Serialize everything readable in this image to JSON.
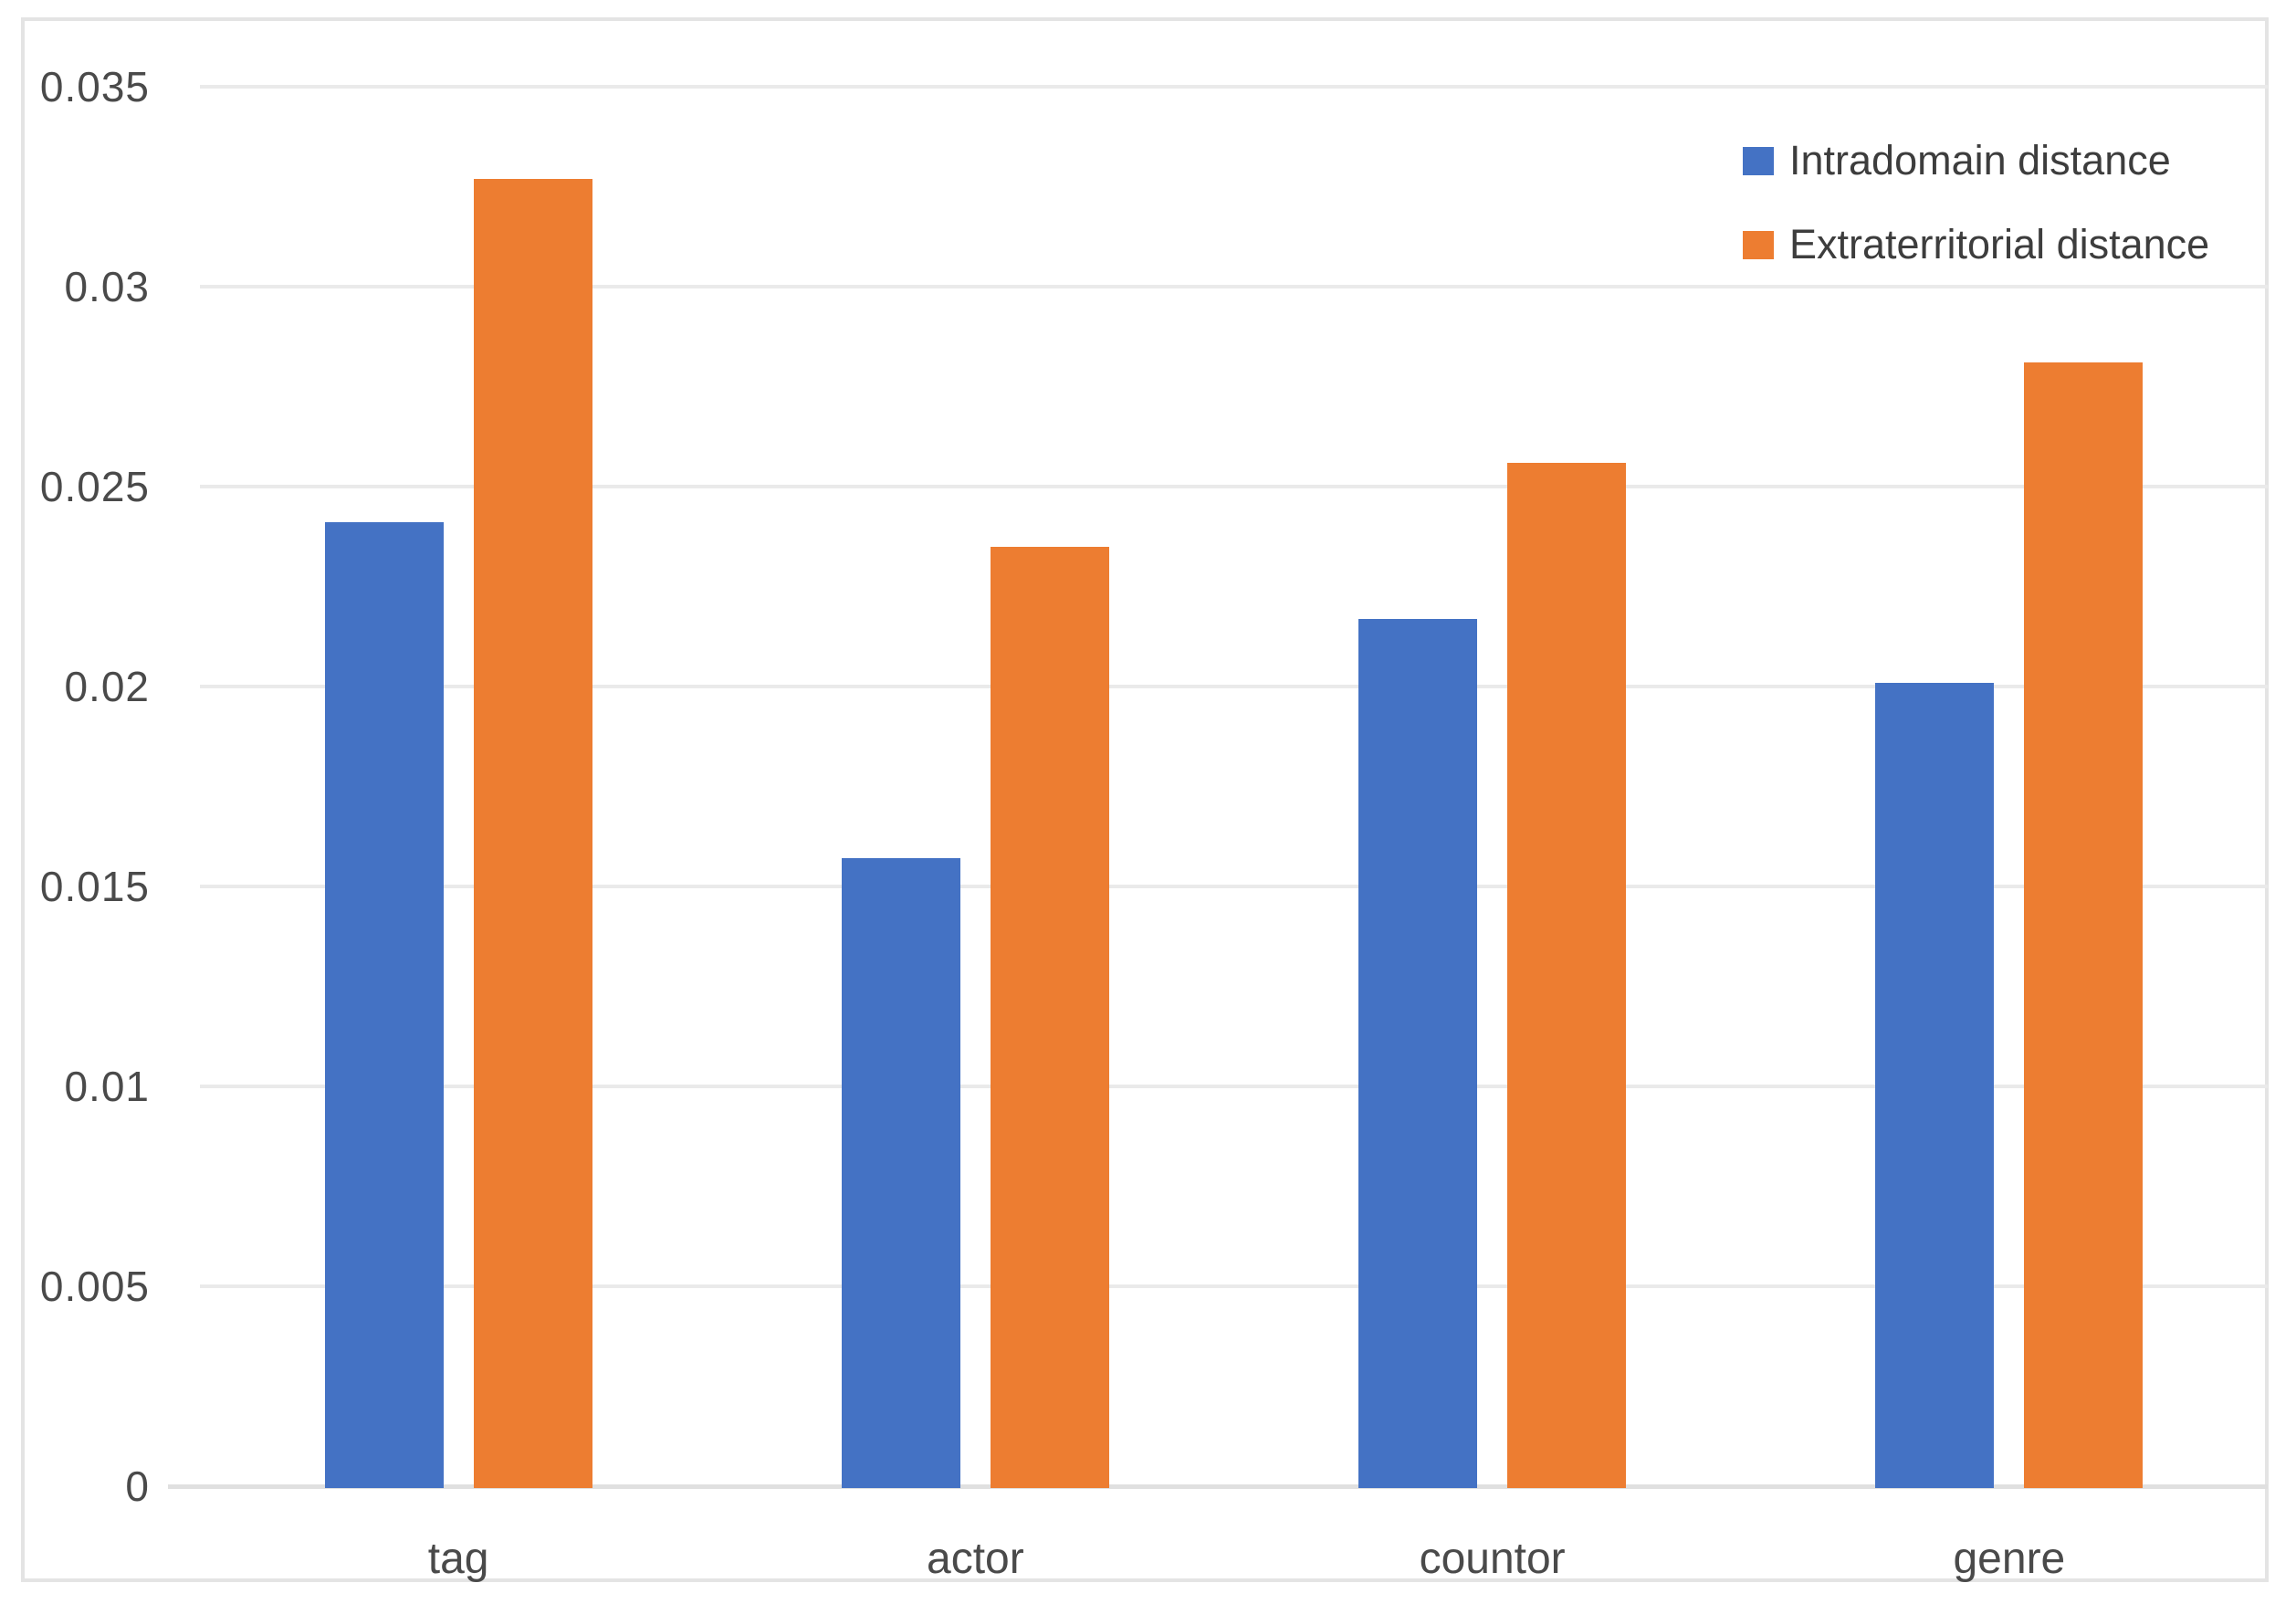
{
  "chart_data": {
    "type": "bar",
    "categories": [
      "tag",
      "actor",
      "countor",
      "genre"
    ],
    "series": [
      {
        "name": "Intradomain distance",
        "color": "#4472C4",
        "values": [
          0.0241,
          0.0157,
          0.0217,
          0.0201
        ]
      },
      {
        "name": "Extraterritorial distance",
        "color": "#ED7D31",
        "values": [
          0.0327,
          0.0235,
          0.0256,
          0.0281
        ]
      }
    ],
    "title": "",
    "xlabel": "",
    "ylabel": "",
    "ylim": [
      0,
      0.035
    ],
    "ytick_step": 0.005,
    "ytick_labels": [
      "0",
      "0.005",
      "0.01",
      "0.015",
      "0.02",
      "0.025",
      "0.03",
      "0.035"
    ],
    "grid": true,
    "legend_position": "top-right"
  },
  "colors": {
    "grid": "#eaeaea",
    "axis_line": "#e0e0e0",
    "frame_border": "#e4e4e4",
    "tick_text": "#4a4a4a",
    "legend_text": "#3d3d3d",
    "background": "#ffffff"
  }
}
